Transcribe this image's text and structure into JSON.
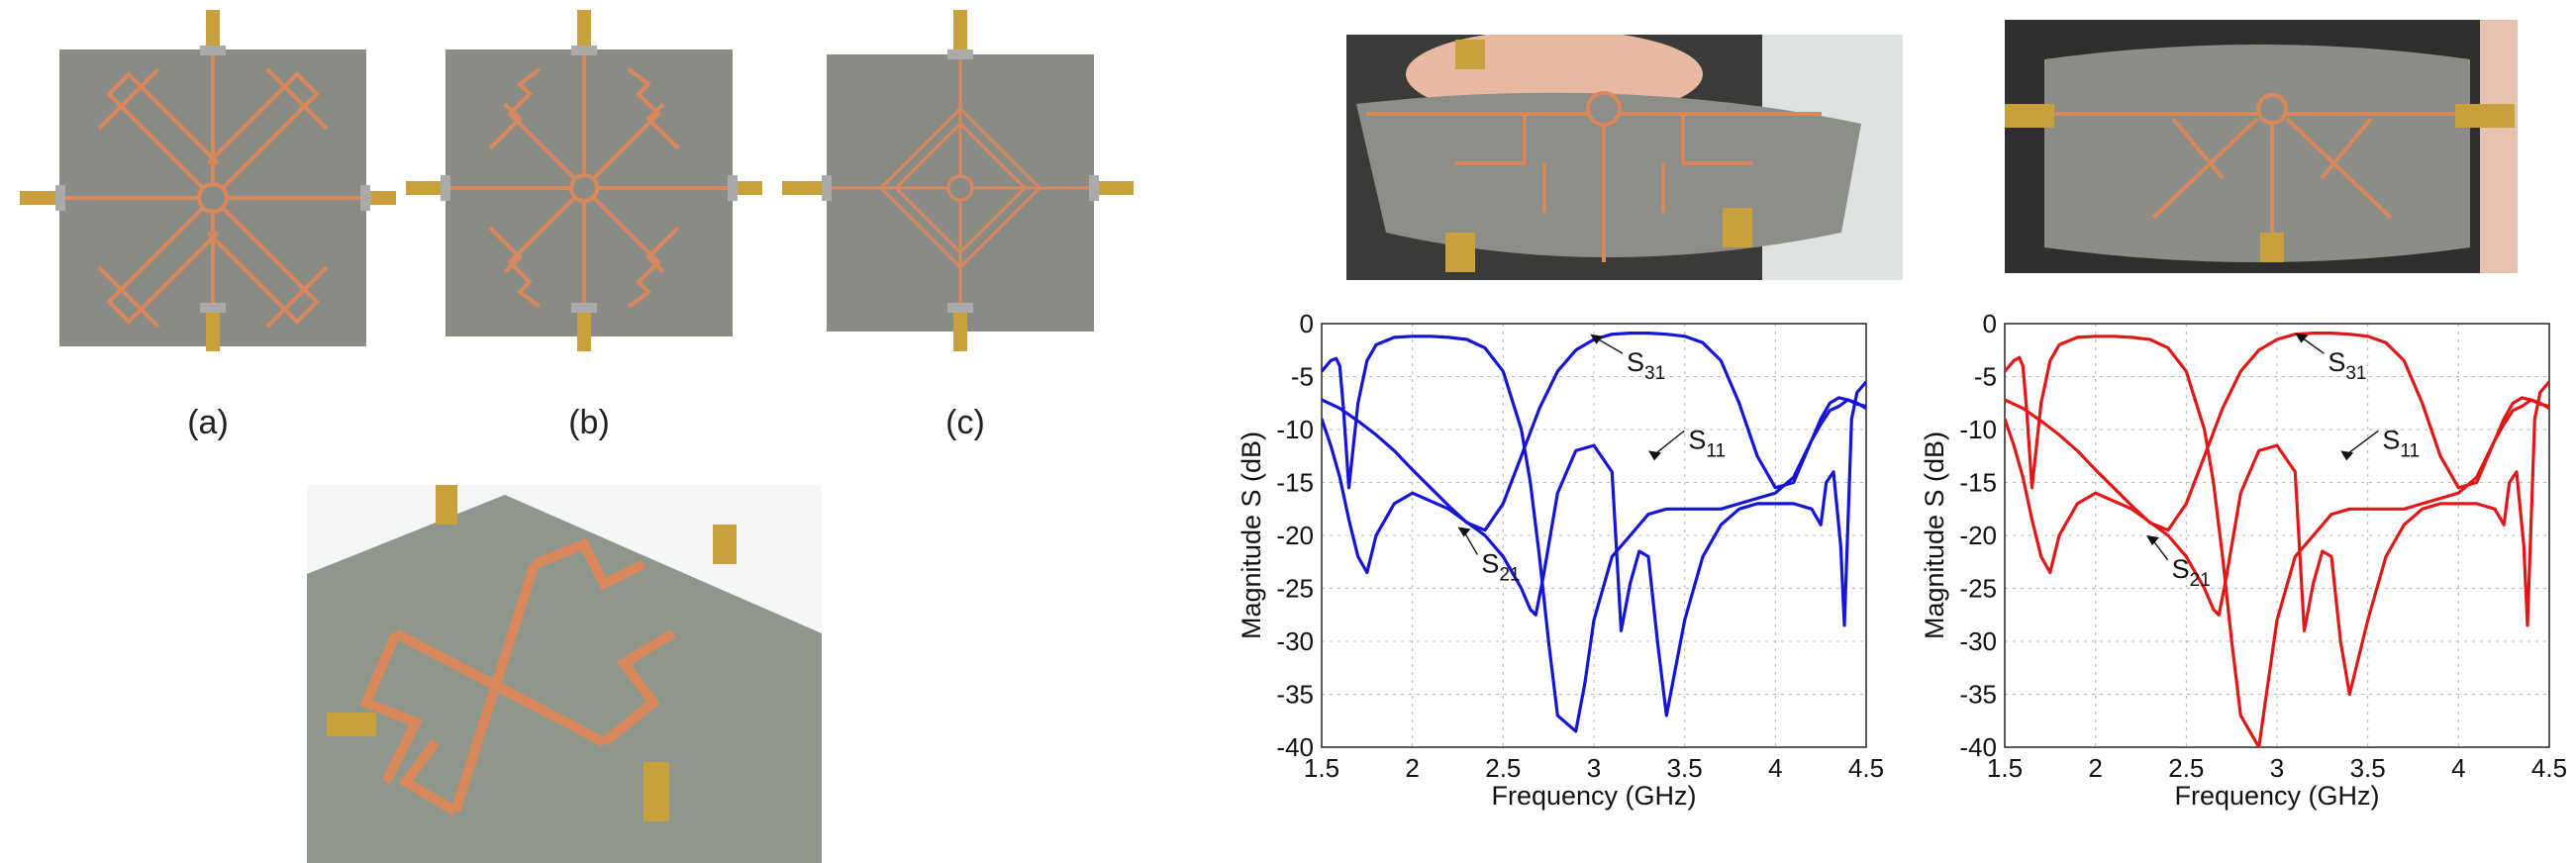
{
  "captions": {
    "a": "(a)",
    "b": "(b)",
    "c": "(c)"
  },
  "colors": {
    "substrate": "#8a8a84",
    "copper": "#d9885c",
    "connector": "#c9a13c",
    "blue_curve": "#1515d8",
    "red_curve": "#e01818"
  },
  "chart_data": [
    {
      "type": "line",
      "xlabel": "Frequency (GHz)",
      "ylabel": "Magnitude S (dB)",
      "xlim": [
        1.5,
        4.5
      ],
      "ylim": [
        -40,
        0
      ],
      "xticks": [
        "1.5",
        "2",
        "2.5",
        "3",
        "3.5",
        "4",
        "4.5"
      ],
      "yticks": [
        "0",
        "-5",
        "-10",
        "-15",
        "-20",
        "-25",
        "-30",
        "-35",
        "-40"
      ],
      "grid": true,
      "color": "#1515d8",
      "annotations": [
        {
          "label": "S",
          "sub": "31",
          "at": [
            2.98,
            -1.0
          ],
          "text_at": [
            3.18,
            -4.5
          ]
        },
        {
          "label": "S",
          "sub": "11",
          "at": [
            3.3,
            -12.0
          ],
          "text_at": [
            3.52,
            -11.8
          ]
        },
        {
          "label": "S",
          "sub": "21",
          "at": [
            2.25,
            -19.2
          ],
          "text_at": [
            2.38,
            -23.5
          ]
        }
      ],
      "series": [
        {
          "x": [
            1.5,
            1.55,
            1.58,
            1.6,
            1.62,
            1.65,
            1.7,
            1.75,
            1.8,
            1.9,
            2.0,
            2.1,
            2.2,
            2.3,
            2.4,
            2.5,
            2.6,
            2.65,
            2.7,
            2.75,
            2.8,
            2.9,
            2.95,
            3.0,
            3.1,
            3.2,
            3.3,
            3.4,
            3.5,
            3.6,
            3.7,
            3.8,
            3.9,
            4.0,
            4.1,
            4.2,
            4.25,
            4.3,
            4.35,
            4.4,
            4.45,
            4.5
          ],
          "y": [
            -4.5,
            -3.5,
            -3.3,
            -4.0,
            -8.0,
            -15.5,
            -7.5,
            -3.5,
            -2.0,
            -1.3,
            -1.2,
            -1.2,
            -1.3,
            -1.5,
            -2.3,
            -4.5,
            -10.0,
            -15.0,
            -22.0,
            -30.0,
            -37.0,
            -38.5,
            -34.0,
            -28.0,
            -22.0,
            -20.0,
            -18.0,
            -17.5,
            -17.5,
            -17.5,
            -17.5,
            -17.0,
            -16.5,
            -16.0,
            -14.5,
            -11.0,
            -9.5,
            -8.2,
            -7.8,
            -7.2,
            -7.5,
            -8.0
          ]
        },
        {
          "x": [
            1.5,
            1.55,
            1.6,
            1.65,
            1.7,
            1.75,
            1.8,
            1.9,
            2.0,
            2.2,
            2.4,
            2.5,
            2.6,
            2.65,
            2.68,
            2.72,
            2.8,
            2.9,
            3.0,
            3.1,
            3.15,
            3.2,
            3.25,
            3.3,
            3.35,
            3.4,
            3.5,
            3.6,
            3.7,
            3.8,
            3.9,
            4.0,
            4.1,
            4.2,
            4.25,
            4.28,
            4.32,
            4.36,
            4.38,
            4.42,
            4.45,
            4.5
          ],
          "y": [
            -9.0,
            -11.5,
            -14.5,
            -18.5,
            -22.0,
            -23.5,
            -20.0,
            -17.0,
            -16.0,
            -17.5,
            -20.0,
            -22.0,
            -25.0,
            -27.0,
            -27.5,
            -24.0,
            -16.0,
            -12.0,
            -11.5,
            -14.0,
            -29.0,
            -24.5,
            -21.5,
            -22.0,
            -30.0,
            -37.0,
            -28.0,
            -22.0,
            -19.0,
            -17.5,
            -17.0,
            -17.0,
            -17.0,
            -17.5,
            -19.0,
            -15.0,
            -14.0,
            -21.0,
            -28.5,
            -9.0,
            -6.5,
            -5.5
          ]
        },
        {
          "x": [
            1.5,
            1.6,
            1.7,
            1.8,
            1.9,
            2.0,
            2.1,
            2.2,
            2.3,
            2.4,
            2.5,
            2.6,
            2.7,
            2.8,
            2.9,
            3.0,
            3.1,
            3.2,
            3.3,
            3.4,
            3.5,
            3.6,
            3.7,
            3.8,
            3.9,
            4.0,
            4.1,
            4.2,
            4.25,
            4.3,
            4.35,
            4.4,
            4.45,
            4.5
          ],
          "y": [
            -7.2,
            -8.0,
            -9.2,
            -10.5,
            -12.0,
            -13.8,
            -15.5,
            -17.2,
            -18.8,
            -19.5,
            -17.0,
            -12.5,
            -8.0,
            -4.5,
            -2.5,
            -1.5,
            -1.0,
            -0.9,
            -0.9,
            -1.0,
            -1.2,
            -1.8,
            -3.5,
            -7.5,
            -12.5,
            -15.5,
            -15.0,
            -11.0,
            -9.0,
            -7.5,
            -7.0,
            -7.2,
            -7.6,
            -7.8
          ]
        }
      ]
    },
    {
      "type": "line",
      "xlabel": "Frequency (GHz)",
      "ylabel": "Magnitude S (dB)",
      "xlim": [
        1.5,
        4.5
      ],
      "ylim": [
        -40,
        0
      ],
      "xticks": [
        "1.5",
        "2",
        "2.5",
        "3",
        "3.5",
        "4",
        "4.5"
      ],
      "yticks": [
        "0",
        "-5",
        "-10",
        "-15",
        "-20",
        "-25",
        "-30",
        "-35",
        "-40"
      ],
      "grid": true,
      "color": "#e01818",
      "annotations": [
        {
          "label": "S",
          "sub": "31",
          "at": [
            3.1,
            -0.9
          ],
          "text_at": [
            3.28,
            -4.5
          ]
        },
        {
          "label": "S",
          "sub": "11",
          "at": [
            3.35,
            -12.0
          ],
          "text_at": [
            3.58,
            -11.8
          ]
        },
        {
          "label": "S",
          "sub": "21",
          "at": [
            2.28,
            -20.0
          ],
          "text_at": [
            2.42,
            -24.0
          ]
        }
      ],
      "series": [
        {
          "x": [
            1.5,
            1.55,
            1.58,
            1.6,
            1.62,
            1.65,
            1.7,
            1.75,
            1.8,
            1.9,
            2.0,
            2.1,
            2.2,
            2.3,
            2.4,
            2.5,
            2.6,
            2.65,
            2.7,
            2.75,
            2.8,
            2.9,
            2.95,
            3.0,
            3.1,
            3.2,
            3.3,
            3.4,
            3.5,
            3.6,
            3.7,
            3.8,
            3.9,
            4.0,
            4.1,
            4.2,
            4.25,
            4.3,
            4.35,
            4.4,
            4.45,
            4.5
          ],
          "y": [
            -4.5,
            -3.5,
            -3.2,
            -4.0,
            -8.0,
            -15.5,
            -7.5,
            -3.5,
            -2.0,
            -1.3,
            -1.2,
            -1.2,
            -1.3,
            -1.5,
            -2.3,
            -4.5,
            -10.0,
            -15.0,
            -22.0,
            -30.0,
            -37.0,
            -40.0,
            -34.0,
            -28.0,
            -22.0,
            -20.0,
            -18.0,
            -17.5,
            -17.5,
            -17.5,
            -17.5,
            -17.0,
            -16.5,
            -16.0,
            -14.5,
            -11.0,
            -9.5,
            -8.2,
            -7.8,
            -7.2,
            -7.5,
            -8.0
          ]
        },
        {
          "x": [
            1.5,
            1.55,
            1.6,
            1.65,
            1.7,
            1.75,
            1.8,
            1.9,
            2.0,
            2.2,
            2.4,
            2.5,
            2.6,
            2.65,
            2.68,
            2.72,
            2.8,
            2.9,
            3.0,
            3.1,
            3.15,
            3.2,
            3.25,
            3.3,
            3.35,
            3.4,
            3.5,
            3.6,
            3.7,
            3.8,
            3.9,
            4.0,
            4.1,
            4.2,
            4.25,
            4.28,
            4.32,
            4.36,
            4.38,
            4.42,
            4.45,
            4.5
          ],
          "y": [
            -9.0,
            -11.5,
            -14.5,
            -18.5,
            -22.0,
            -23.5,
            -20.0,
            -17.0,
            -16.0,
            -17.5,
            -20.0,
            -22.0,
            -25.0,
            -27.0,
            -27.5,
            -24.0,
            -16.0,
            -12.0,
            -11.5,
            -14.0,
            -29.0,
            -24.5,
            -21.5,
            -22.0,
            -30.0,
            -35.0,
            -28.0,
            -22.0,
            -19.0,
            -17.5,
            -17.0,
            -17.0,
            -17.0,
            -17.5,
            -19.0,
            -15.0,
            -14.0,
            -21.0,
            -28.5,
            -9.0,
            -6.5,
            -5.5
          ]
        },
        {
          "x": [
            1.5,
            1.6,
            1.7,
            1.8,
            1.9,
            2.0,
            2.1,
            2.2,
            2.3,
            2.4,
            2.5,
            2.6,
            2.7,
            2.8,
            2.9,
            3.0,
            3.1,
            3.2,
            3.3,
            3.4,
            3.5,
            3.6,
            3.7,
            3.8,
            3.9,
            4.0,
            4.1,
            4.2,
            4.25,
            4.3,
            4.35,
            4.4,
            4.45,
            4.5
          ],
          "y": [
            -7.2,
            -8.0,
            -9.2,
            -10.5,
            -12.0,
            -13.8,
            -15.5,
            -17.2,
            -18.8,
            -19.5,
            -17.0,
            -12.5,
            -8.0,
            -4.5,
            -2.5,
            -1.5,
            -1.0,
            -0.9,
            -0.9,
            -1.0,
            -1.2,
            -1.8,
            -3.5,
            -7.5,
            -12.5,
            -15.5,
            -15.0,
            -11.0,
            -9.0,
            -7.5,
            -7.0,
            -7.2,
            -7.6,
            -7.8
          ]
        }
      ]
    }
  ]
}
